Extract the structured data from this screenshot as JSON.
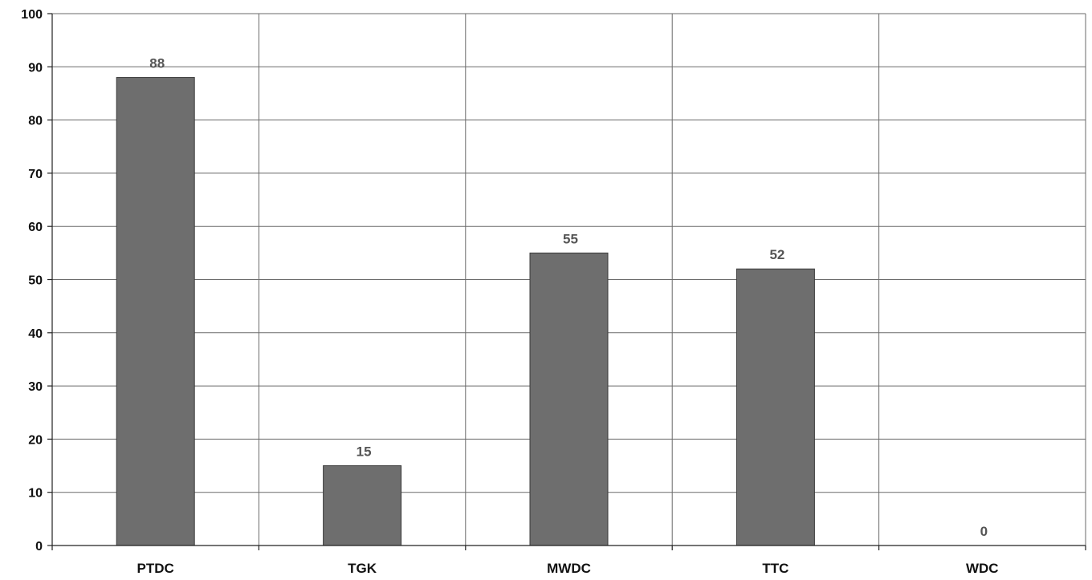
{
  "chart_data": {
    "type": "bar",
    "categories": [
      "PTDC",
      "TGK",
      "MWDC",
      "TTC",
      "WDC"
    ],
    "values": [
      88,
      15,
      55,
      52,
      0
    ],
    "data_labels": [
      "88",
      "15",
      "55",
      "52",
      "0"
    ],
    "ylim": [
      0,
      100
    ],
    "y_ticks": [
      0,
      10,
      20,
      30,
      40,
      50,
      60,
      70,
      80,
      90,
      100
    ],
    "grid": true,
    "bar_color": "#6e6e6e",
    "title": "",
    "xlabel": "",
    "ylabel": ""
  }
}
